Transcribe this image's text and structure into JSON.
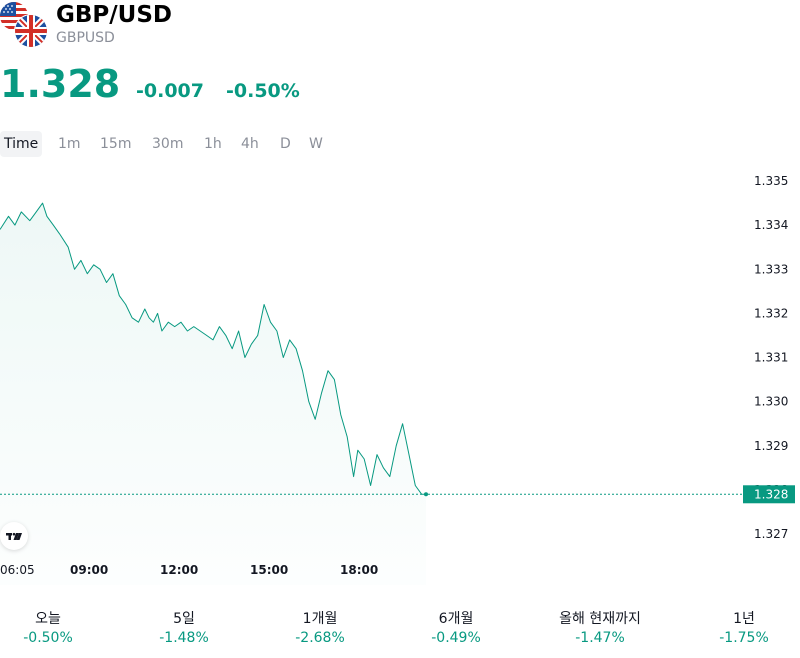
{
  "symbol": {
    "title": "GBP/USD",
    "subtitle": "GBPUSD",
    "price": "1.328",
    "change": "-0.007",
    "change_percent": "-0.50%",
    "color_up": "#089981"
  },
  "tabs": [
    "Time",
    "1m",
    "15m",
    "30m",
    "1h",
    "4h",
    "D",
    "W"
  ],
  "active_tab": "Time",
  "performance": [
    {
      "label": "오늘",
      "value": "-0.50%"
    },
    {
      "label": "5일",
      "value": "-1.48%"
    },
    {
      "label": "1개월",
      "value": "-2.68%"
    },
    {
      "label": "6개월",
      "value": "-0.49%"
    },
    {
      "label": "올해 현재까지",
      "value": "-1.47%"
    },
    {
      "label": "1년",
      "value": "-1.75%"
    }
  ],
  "chart_data": {
    "type": "area",
    "line_color": "#089981",
    "x_tick_labels": [
      "06:05",
      "09:00",
      "12:00",
      "15:00",
      "18:00"
    ],
    "y_tick_labels": [
      "1.335",
      "1.334",
      "1.333",
      "1.332",
      "1.331",
      "1.330",
      "1.329",
      "1.328",
      "1.327"
    ],
    "ylim": [
      1.3268,
      1.3352
    ],
    "xlim": [
      0,
      100
    ],
    "last_price_label": "1.328",
    "last_price": 1.3279,
    "x": [
      0,
      2,
      3.5,
      5,
      7,
      8.5,
      10,
      11,
      12.5,
      14,
      16,
      17.5,
      19,
      20.5,
      22,
      23.5,
      25,
      26.5,
      28,
      29.5,
      31,
      32.5,
      34,
      35,
      36,
      37,
      38,
      39.5,
      41,
      42.5,
      44,
      45.5,
      47,
      48.5,
      50,
      51.5,
      53,
      54.5,
      56,
      57.5,
      59,
      60.5,
      62,
      63.5,
      65,
      66.5,
      68,
      69.5,
      71,
      72.5,
      74,
      75.5,
      77,
      78.5,
      80,
      81.5,
      83,
      84,
      85.5,
      87,
      88.5,
      90,
      91.5,
      93,
      94.5,
      96,
      97.5,
      99,
      100
    ],
    "y": [
      1.3339,
      1.3342,
      1.334,
      1.3343,
      1.3341,
      1.3343,
      1.3345,
      1.3342,
      1.334,
      1.3338,
      1.3335,
      1.333,
      1.3332,
      1.3329,
      1.3331,
      1.333,
      1.3327,
      1.3329,
      1.3324,
      1.3322,
      1.3319,
      1.3318,
      1.3321,
      1.3319,
      1.3318,
      1.332,
      1.3316,
      1.3318,
      1.3317,
      1.3318,
      1.3316,
      1.3317,
      1.3316,
      1.3315,
      1.3314,
      1.3317,
      1.3315,
      1.3312,
      1.3316,
      1.331,
      1.3313,
      1.3315,
      1.3322,
      1.3318,
      1.3316,
      1.331,
      1.3314,
      1.3312,
      1.3307,
      1.33,
      1.3296,
      1.3302,
      1.3307,
      1.3305,
      1.3297,
      1.3292,
      1.3283,
      1.3289,
      1.3287,
      1.3281,
      1.3288,
      1.3285,
      1.3283,
      1.329,
      1.3295,
      1.3288,
      1.3281,
      1.3279,
      1.3279
    ]
  }
}
